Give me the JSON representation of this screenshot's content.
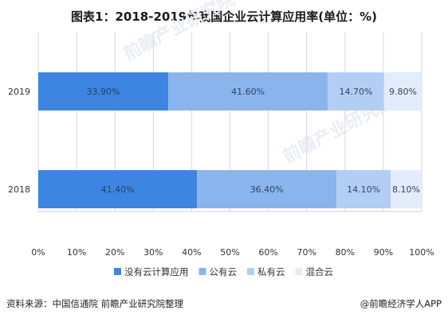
{
  "title": "图表1：2018-2019年我国企业云计算应用率(单位：%)",
  "source": "资料来源：中国信通院 前瞻产业研究院整理",
  "credit": "@前瞻经济学人APP",
  "watermark": "前瞻产业研究院",
  "chart_data": {
    "type": "bar",
    "orientation": "horizontal",
    "stacked": true,
    "categories": [
      "2019",
      "2018"
    ],
    "series": [
      {
        "name": "没有云计算应用",
        "values": [
          33.9,
          41.4
        ],
        "labels": [
          "33.90%",
          "41.40%"
        ],
        "color": "#3d85e0",
        "text_color": "#1f3f66"
      },
      {
        "name": "公有云",
        "values": [
          41.6,
          36.4
        ],
        "labels": [
          "41.60%",
          "36.40%"
        ],
        "color": "#8ab4ee",
        "text_color": "#2a4466"
      },
      {
        "name": "私有云",
        "values": [
          14.7,
          14.1
        ],
        "labels": [
          "14.70%",
          "14.10%"
        ],
        "color": "#b3cef4",
        "text_color": "#33475e"
      },
      {
        "name": "混合云",
        "values": [
          9.8,
          8.1
        ],
        "labels": [
          "9.80%",
          "8.10%"
        ],
        "color": "#e2ecfb",
        "text_color": "#3a4350"
      }
    ],
    "xlim": [
      0,
      100
    ],
    "xticks": [
      "0%",
      "10%",
      "20%",
      "30%",
      "40%",
      "50%",
      "60%",
      "70%",
      "80%",
      "90%",
      "100%"
    ],
    "grid": true,
    "legend_position": "bottom"
  }
}
